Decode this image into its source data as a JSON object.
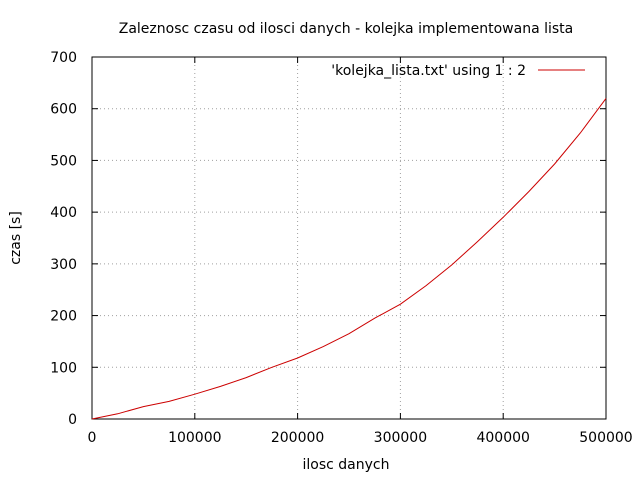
{
  "chart_data": {
    "type": "line",
    "title": "Zaleznosc czasu od ilosci danych - kolejka implementowana lista",
    "xlabel": "ilosc danych",
    "ylabel": "czas [s]",
    "xlim": [
      0,
      500000
    ],
    "ylim": [
      0,
      700
    ],
    "xticks": [
      0,
      100000,
      200000,
      300000,
      400000,
      500000
    ],
    "xtick_labels": [
      "0",
      "100000",
      "200000",
      "300000",
      "400000",
      "500000"
    ],
    "yticks": [
      0,
      100,
      200,
      300,
      400,
      500,
      600,
      700
    ],
    "ytick_labels": [
      "0",
      "100",
      "200",
      "300",
      "400",
      "500",
      "600",
      "700"
    ],
    "grid": true,
    "legend_position": "top-right",
    "series": [
      {
        "name": "'kolejka_lista.txt' using 1 : 2",
        "color": "#cc0000",
        "x": [
          0,
          25000,
          50000,
          75000,
          100000,
          125000,
          150000,
          175000,
          200000,
          225000,
          250000,
          275000,
          300000,
          325000,
          350000,
          375000,
          400000,
          425000,
          450000,
          475000,
          500000
        ],
        "y": [
          0,
          10,
          24,
          34,
          48,
          63,
          80,
          100,
          118,
          140,
          165,
          195,
          222,
          258,
          298,
          343,
          390,
          440,
          493,
          553,
          620
        ]
      }
    ]
  }
}
